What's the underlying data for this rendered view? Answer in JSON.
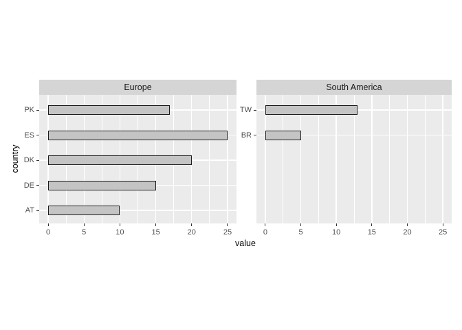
{
  "chart_data": {
    "type": "bar",
    "orientation": "horizontal",
    "title": "",
    "xlabel": "value",
    "ylabel": "country",
    "xlim": [
      0,
      25
    ],
    "x_major_ticks": [
      0,
      5,
      10,
      15,
      20,
      25
    ],
    "x_minor_ticks": [
      2.5,
      7.5,
      12.5,
      17.5,
      22.5
    ],
    "grid": "white major+minor vertical lines and major horizontal lines on grey panel",
    "legend": "none",
    "facets": [
      {
        "label": "Europe",
        "categories": [
          "PK",
          "ES",
          "DK",
          "DE",
          "AT"
        ],
        "values": [
          17,
          25,
          20,
          15,
          10
        ]
      },
      {
        "label": "South America",
        "categories": [
          "TW",
          "BR"
        ],
        "values": [
          13,
          5
        ]
      }
    ],
    "colors": {
      "panel_background": "#EBEBEB",
      "strip_background": "#D5D5D5",
      "grid_line": "#FFFFFF",
      "bar_fill": "#C4C4C4",
      "bar_border": "#1C1C1C",
      "tick_mark": "#333333",
      "tick_label": "#4D4D4D",
      "axis_title": "#000000",
      "strip_text": "#1A1A1A"
    }
  }
}
